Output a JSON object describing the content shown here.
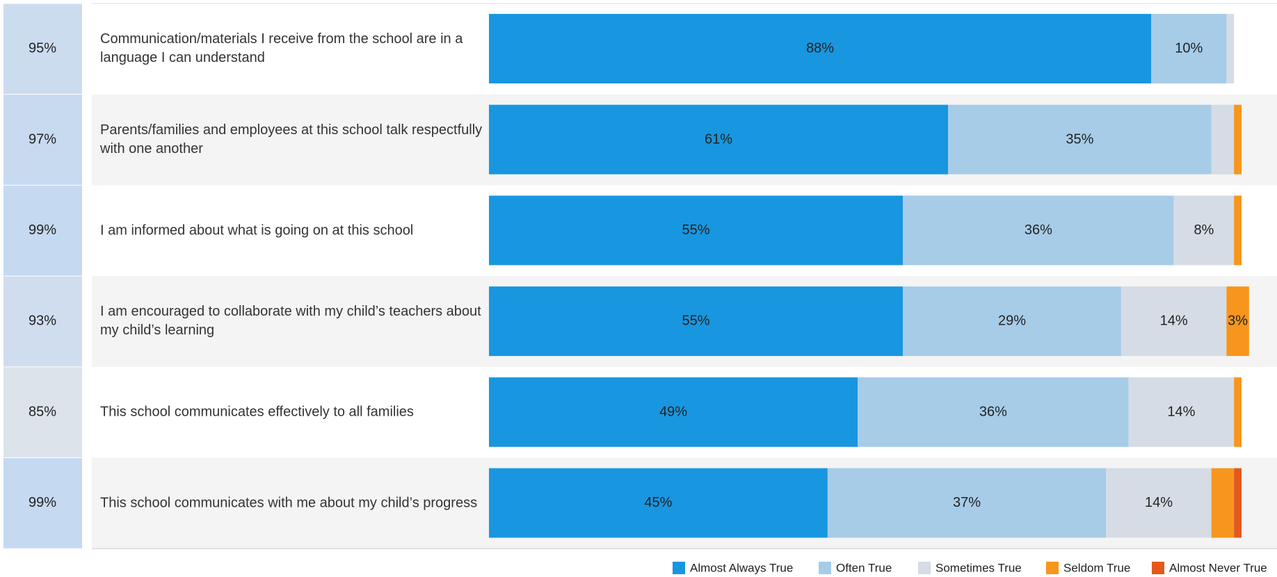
{
  "chart_data": {
    "type": "bar",
    "orientation": "horizontal",
    "stacked": true,
    "categories": [
      "Communication/materials I receive from the school are in a language I can understand",
      "Parents/families and employees at this school talk respectfully with one another",
      "I am informed about what is going on at this school",
      "I am encouraged to collaborate with my child’s teachers about my child’s learning",
      "This school communicates effectively to all families",
      "This school communicates with me about my child’s progress"
    ],
    "summary": {
      "values": [
        95,
        97,
        99,
        93,
        85,
        99
      ],
      "value_labels": [
        "95%",
        "97%",
        "99%",
        "93%",
        "85%",
        "99%"
      ]
    },
    "series": [
      {
        "name": "Almost Always True",
        "color": "#1996e0",
        "values": [
          88,
          61,
          55,
          55,
          49,
          45
        ],
        "value_labels": [
          "88%",
          "61%",
          "55%",
          "55%",
          "49%",
          "45%"
        ]
      },
      {
        "name": "Often True",
        "color": "#a6cce8",
        "values": [
          10,
          35,
          36,
          29,
          36,
          37
        ],
        "value_labels": [
          "10%",
          "35%",
          "36%",
          "29%",
          "36%",
          "37%"
        ]
      },
      {
        "name": "Sometimes True",
        "color": "#d5dce5",
        "values": [
          1,
          3,
          8,
          14,
          14,
          14
        ],
        "value_labels": [
          null,
          null,
          "8%",
          "14%",
          "14%",
          "14%"
        ]
      },
      {
        "name": "Seldom True",
        "color": "#f7961c",
        "values": [
          0,
          1,
          1,
          3,
          1,
          3
        ],
        "value_labels": [
          null,
          null,
          null,
          "3%",
          null,
          null
        ]
      },
      {
        "name": "Almost Never True",
        "color": "#e5581c",
        "values": [
          0,
          0,
          0,
          0,
          0,
          1
        ],
        "value_labels": [
          null,
          null,
          null,
          null,
          null,
          null
        ]
      }
    ],
    "xlim": [
      0,
      100
    ],
    "legend": "bottom-right"
  }
}
